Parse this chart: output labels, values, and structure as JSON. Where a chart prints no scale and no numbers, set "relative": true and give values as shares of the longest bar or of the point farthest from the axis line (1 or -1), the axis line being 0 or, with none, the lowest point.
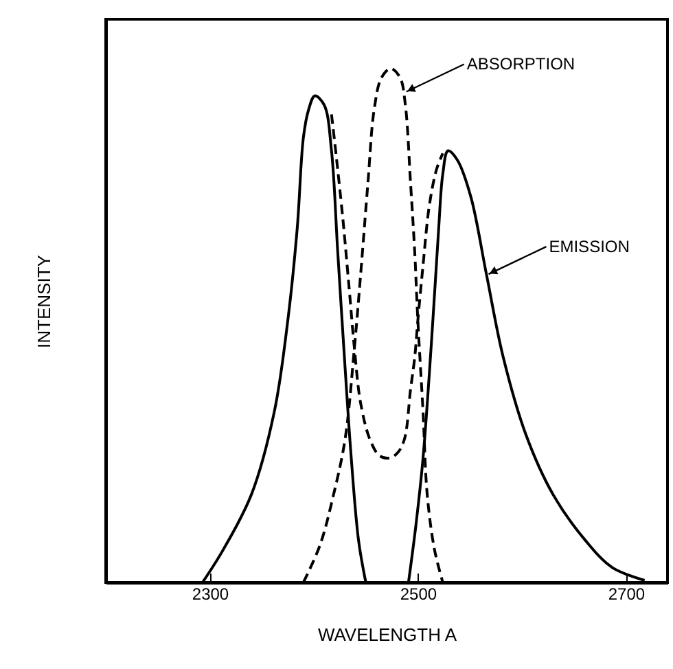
{
  "chart_data": {
    "type": "line",
    "xlabel": "WAVELENGTH A",
    "ylabel": "INTENSITY",
    "relative": true,
    "xlim": [
      2200,
      2740
    ],
    "xticks": [
      2300,
      2500,
      2700
    ],
    "grid": false,
    "marker": "none",
    "annotations": [
      {
        "text": "ABSORPTION",
        "x": 2489,
        "y": 0.955
      },
      {
        "text": "EMISSION",
        "x": 2568,
        "y": 0.6
      }
    ],
    "series": [
      {
        "color": "#000000",
        "line_style": "solid",
        "x": [
          2293,
          2313,
          2340,
          2362,
          2375,
          2384,
          2390,
          2395,
          2401,
          2410,
          2417,
          2423,
          2430,
          2436,
          2443,
          2450,
          2470,
          2491,
          2498,
          2505,
          2513,
          2520,
          2524,
          2529,
          2538,
          2551,
          2566,
          2582,
          2604,
          2630,
          2661,
          2687,
          2718
        ],
        "values": [
          0,
          0.064,
          0.171,
          0.332,
          0.51,
          0.688,
          0.866,
          0.92,
          0.947,
          0.929,
          0.84,
          0.643,
          0.42,
          0.242,
          0.082,
          0,
          null,
          0,
          0.109,
          0.242,
          0.465,
          0.688,
          0.795,
          0.84,
          0.822,
          0.75,
          0.599,
          0.439,
          0.287,
          0.171,
          0.082,
          0.029,
          0.004
        ]
      },
      {
        "color": "#000000",
        "line_style": "dashed",
        "x": [
          2390,
          2406,
          2419,
          2430,
          2439,
          2445,
          2452,
          2458,
          2465,
          2474,
          2483,
          2488,
          2493,
          2497,
          2500,
          2505,
          2509,
          2516,
          2524,
          2470,
          2417,
          2421,
          2428,
          2434,
          2439,
          2445,
          2454,
          2463,
          2472,
          2480,
          2487,
          2493,
          2497,
          2500,
          2505,
          2511,
          2518,
          2524
        ],
        "values": [
          0,
          0.073,
          0.171,
          0.278,
          0.456,
          0.599,
          0.777,
          0.92,
          0.982,
          1,
          0.982,
          0.929,
          0.777,
          0.643,
          0.51,
          0.332,
          0.171,
          0.064,
          0,
          null,
          0.911,
          0.84,
          0.706,
          0.572,
          0.456,
          0.349,
          0.278,
          0.247,
          0.242,
          0.251,
          0.278,
          0.376,
          0.438,
          0.51,
          0.617,
          0.733,
          0.804,
          0.835
        ]
      }
    ]
  }
}
